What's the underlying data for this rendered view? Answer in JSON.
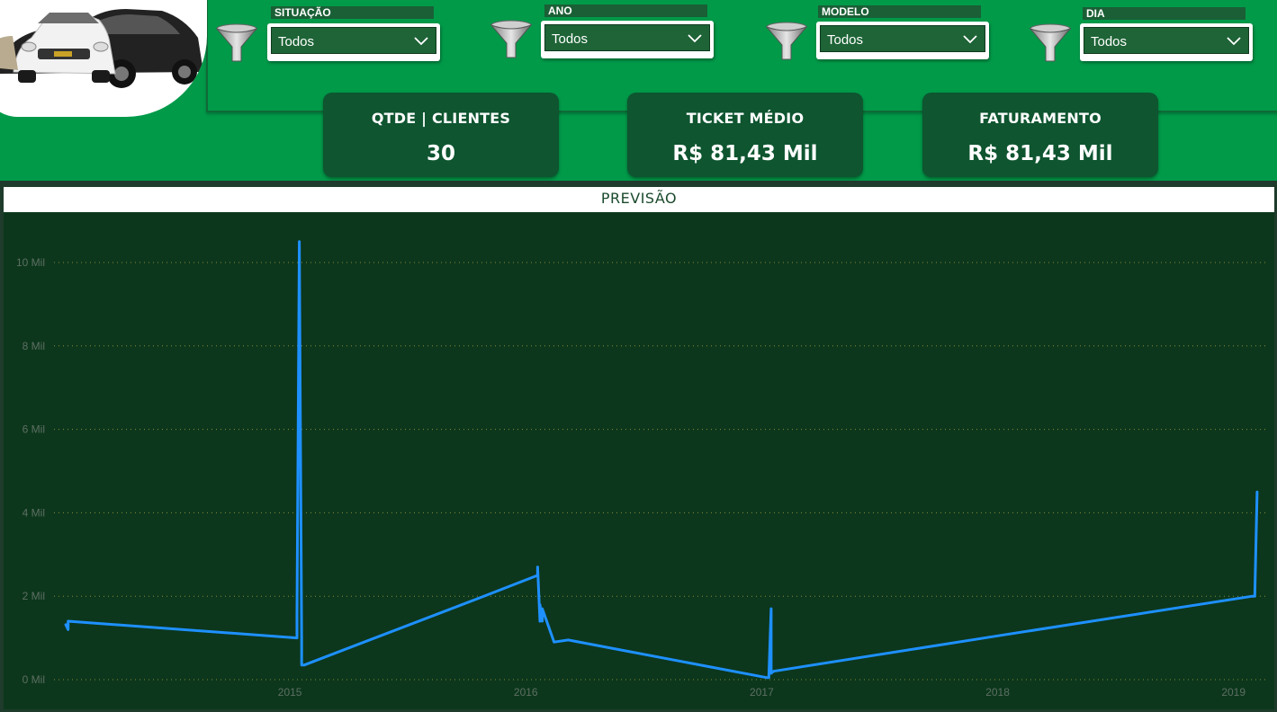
{
  "filters": [
    {
      "label": "SITUAÇÃO",
      "value": "Todos",
      "icon": "funnel-icon"
    },
    {
      "label": "ANO",
      "value": "Todos",
      "icon": "funnel-icon"
    },
    {
      "label": "MODELO",
      "value": "Todos",
      "icon": "funnel-icon"
    },
    {
      "label": "DIA",
      "value": "Todos",
      "icon": "funnel-icon"
    }
  ],
  "kpis": [
    {
      "title": "QTDE | CLIENTES",
      "value": "30"
    },
    {
      "title": "TICKET MÉDIO",
      "value": "R$ 81,43 Mil"
    },
    {
      "title": "FATURAMENTO",
      "value": "R$ 81,43 Mil"
    }
  ],
  "colors": {
    "accent_green": "#009a49",
    "card_green": "#0e5530",
    "chart_bg": "#0c371c",
    "line": "#1e90ff"
  },
  "chart_data": {
    "type": "line",
    "title": "PREVISÃO",
    "xlabel": "",
    "ylabel": "",
    "xlim": [
      2014.0,
      2019.15
    ],
    "ylim": [
      0,
      10000
    ],
    "yticks": [
      {
        "value": 0,
        "label": "0 Mil"
      },
      {
        "value": 2000,
        "label": "2 Mil"
      },
      {
        "value": 4000,
        "label": "4 Mil"
      },
      {
        "value": 6000,
        "label": "6 Mil"
      },
      {
        "value": 8000,
        "label": "8 Mil"
      },
      {
        "value": 10000,
        "label": "10 Mil"
      }
    ],
    "xticks": [
      {
        "value": 2015,
        "label": "2015"
      },
      {
        "value": 2016,
        "label": "2016"
      },
      {
        "value": 2017,
        "label": "2017"
      },
      {
        "value": 2018,
        "label": "2018"
      },
      {
        "value": 2019,
        "label": "2019"
      }
    ],
    "grid": true,
    "series": [
      {
        "name": "Previsão",
        "x": [
          2014.05,
          2014.06,
          2014.06,
          2015.03,
          2015.03,
          2015.04,
          2015.05,
          2015.05,
          2015.06,
          2015.8,
          2016.05,
          2016.05,
          2016.06,
          2016.06,
          2016.07,
          2016.07,
          2016.12,
          2016.18,
          2017.02,
          2017.03,
          2017.04,
          2017.04,
          2017.05,
          2018.0,
          2019.08,
          2019.09,
          2019.1
        ],
        "y": [
          1320,
          1200,
          1400,
          1000,
          1550,
          10500,
          900,
          350,
          350,
          1950,
          2500,
          2700,
          1400,
          1800,
          1400,
          1700,
          900,
          950,
          50,
          50,
          1700,
          150,
          200,
          1050,
          2000,
          2000,
          4500
        ]
      }
    ]
  }
}
